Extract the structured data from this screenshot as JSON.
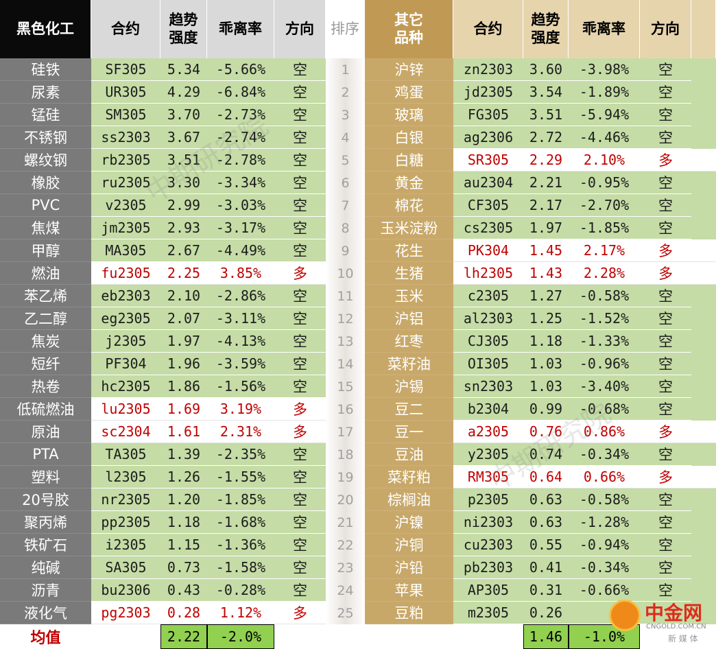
{
  "headers": {
    "left_category": "黑色化工",
    "contract": "合约",
    "strength": "趋势\n强度",
    "deviation": "乖离率",
    "direction": "方向",
    "rank": "排序",
    "right_category": "其它\n品种"
  },
  "rows": [
    {
      "rank": "1",
      "left": {
        "name": "硅铁",
        "contract": "SF305",
        "strength": "5.34",
        "deviation": "-5.66%",
        "direction": "空"
      },
      "right": {
        "name": "沪锌",
        "contract": "zn2303",
        "strength": "3.60",
        "deviation": "-3.98%",
        "direction": "空"
      }
    },
    {
      "rank": "2",
      "left": {
        "name": "尿素",
        "contract": "UR305",
        "strength": "4.29",
        "deviation": "-6.84%",
        "direction": "空"
      },
      "right": {
        "name": "鸡蛋",
        "contract": "jd2305",
        "strength": "3.54",
        "deviation": "-1.89%",
        "direction": "空"
      }
    },
    {
      "rank": "3",
      "left": {
        "name": "锰硅",
        "contract": "SM305",
        "strength": "3.70",
        "deviation": "-2.73%",
        "direction": "空"
      },
      "right": {
        "name": "玻璃",
        "contract": "FG305",
        "strength": "3.51",
        "deviation": "-5.94%",
        "direction": "空"
      }
    },
    {
      "rank": "4",
      "left": {
        "name": "不锈钢",
        "contract": "ss2303",
        "strength": "3.67",
        "deviation": "-2.74%",
        "direction": "空"
      },
      "right": {
        "name": "白银",
        "contract": "ag2306",
        "strength": "2.72",
        "deviation": "-4.46%",
        "direction": "空"
      }
    },
    {
      "rank": "5",
      "left": {
        "name": "螺纹钢",
        "contract": "rb2305",
        "strength": "3.51",
        "deviation": "-2.78%",
        "direction": "空"
      },
      "right": {
        "name": "白糖",
        "contract": "SR305",
        "strength": "2.29",
        "deviation": "2.10%",
        "direction": "多"
      }
    },
    {
      "rank": "6",
      "left": {
        "name": "橡胶",
        "contract": "ru2305",
        "strength": "3.30",
        "deviation": "-3.34%",
        "direction": "空"
      },
      "right": {
        "name": "黄金",
        "contract": "au2304",
        "strength": "2.21",
        "deviation": "-0.95%",
        "direction": "空"
      }
    },
    {
      "rank": "7",
      "left": {
        "name": "PVC",
        "contract": "v2305",
        "strength": "2.99",
        "deviation": "-3.03%",
        "direction": "空"
      },
      "right": {
        "name": "棉花",
        "contract": "CF305",
        "strength": "2.17",
        "deviation": "-2.70%",
        "direction": "空"
      }
    },
    {
      "rank": "8",
      "left": {
        "name": "焦煤",
        "contract": "jm2305",
        "strength": "2.93",
        "deviation": "-3.17%",
        "direction": "空"
      },
      "right": {
        "name": "玉米淀粉",
        "contract": "cs2305",
        "strength": "1.97",
        "deviation": "-1.85%",
        "direction": "空"
      }
    },
    {
      "rank": "9",
      "left": {
        "name": "甲醇",
        "contract": "MA305",
        "strength": "2.67",
        "deviation": "-4.49%",
        "direction": "空"
      },
      "right": {
        "name": "花生",
        "contract": "PK304",
        "strength": "1.45",
        "deviation": "2.17%",
        "direction": "多"
      }
    },
    {
      "rank": "10",
      "left": {
        "name": "燃油",
        "contract": "fu2305",
        "strength": "2.25",
        "deviation": "3.85%",
        "direction": "多"
      },
      "right": {
        "name": "生猪",
        "contract": "lh2305",
        "strength": "1.43",
        "deviation": "2.28%",
        "direction": "多"
      }
    },
    {
      "rank": "11",
      "left": {
        "name": "苯乙烯",
        "contract": "eb2303",
        "strength": "2.10",
        "deviation": "-2.86%",
        "direction": "空"
      },
      "right": {
        "name": "玉米",
        "contract": "c2305",
        "strength": "1.27",
        "deviation": "-0.58%",
        "direction": "空"
      }
    },
    {
      "rank": "12",
      "left": {
        "name": "乙二醇",
        "contract": "eg2305",
        "strength": "2.07",
        "deviation": "-3.11%",
        "direction": "空"
      },
      "right": {
        "name": "沪铝",
        "contract": "al2303",
        "strength": "1.25",
        "deviation": "-1.52%",
        "direction": "空"
      }
    },
    {
      "rank": "13",
      "left": {
        "name": "焦炭",
        "contract": "j2305",
        "strength": "1.97",
        "deviation": "-4.13%",
        "direction": "空"
      },
      "right": {
        "name": "红枣",
        "contract": "CJ305",
        "strength": "1.18",
        "deviation": "-1.33%",
        "direction": "空"
      }
    },
    {
      "rank": "14",
      "left": {
        "name": "短纤",
        "contract": "PF304",
        "strength": "1.96",
        "deviation": "-3.59%",
        "direction": "空"
      },
      "right": {
        "name": "菜籽油",
        "contract": "OI305",
        "strength": "1.03",
        "deviation": "-0.96%",
        "direction": "空"
      }
    },
    {
      "rank": "15",
      "left": {
        "name": "热卷",
        "contract": "hc2305",
        "strength": "1.86",
        "deviation": "-1.56%",
        "direction": "空"
      },
      "right": {
        "name": "沪锡",
        "contract": "sn2303",
        "strength": "1.03",
        "deviation": "-3.40%",
        "direction": "空"
      }
    },
    {
      "rank": "16",
      "left": {
        "name": "低硫燃油",
        "contract": "lu2305",
        "strength": "1.69",
        "deviation": "3.19%",
        "direction": "多"
      },
      "right": {
        "name": "豆二",
        "contract": "b2304",
        "strength": "0.99",
        "deviation": "-0.68%",
        "direction": "空"
      }
    },
    {
      "rank": "17",
      "left": {
        "name": "原油",
        "contract": "sc2304",
        "strength": "1.61",
        "deviation": "2.31%",
        "direction": "多"
      },
      "right": {
        "name": "豆一",
        "contract": "a2305",
        "strength": "0.76",
        "deviation": "0.86%",
        "direction": "多"
      }
    },
    {
      "rank": "18",
      "left": {
        "name": "PTA",
        "contract": "TA305",
        "strength": "1.39",
        "deviation": "-2.35%",
        "direction": "空"
      },
      "right": {
        "name": "豆油",
        "contract": "y2305",
        "strength": "0.74",
        "deviation": "-0.34%",
        "direction": "空"
      }
    },
    {
      "rank": "19",
      "left": {
        "name": "塑料",
        "contract": "l2305",
        "strength": "1.26",
        "deviation": "-1.55%",
        "direction": "空"
      },
      "right": {
        "name": "菜籽粕",
        "contract": "RM305",
        "strength": "0.64",
        "deviation": "0.66%",
        "direction": "多"
      }
    },
    {
      "rank": "20",
      "left": {
        "name": "20号胶",
        "contract": "nr2305",
        "strength": "1.20",
        "deviation": "-1.85%",
        "direction": "空"
      },
      "right": {
        "name": "棕榈油",
        "contract": "p2305",
        "strength": "0.63",
        "deviation": "-0.58%",
        "direction": "空"
      }
    },
    {
      "rank": "21",
      "left": {
        "name": "聚丙烯",
        "contract": "pp2305",
        "strength": "1.18",
        "deviation": "-1.68%",
        "direction": "空"
      },
      "right": {
        "name": "沪镍",
        "contract": "ni2303",
        "strength": "0.63",
        "deviation": "-1.28%",
        "direction": "空"
      }
    },
    {
      "rank": "22",
      "left": {
        "name": "铁矿石",
        "contract": "i2305",
        "strength": "1.15",
        "deviation": "-1.36%",
        "direction": "空"
      },
      "right": {
        "name": "沪铜",
        "contract": "cu2303",
        "strength": "0.55",
        "deviation": "-0.94%",
        "direction": "空"
      }
    },
    {
      "rank": "23",
      "left": {
        "name": "纯碱",
        "contract": "SA305",
        "strength": "0.73",
        "deviation": "-1.58%",
        "direction": "空"
      },
      "right": {
        "name": "沪铅",
        "contract": "pb2303",
        "strength": "0.41",
        "deviation": "-0.34%",
        "direction": "空"
      }
    },
    {
      "rank": "24",
      "left": {
        "name": "沥青",
        "contract": "bu2306",
        "strength": "0.43",
        "deviation": "-0.28%",
        "direction": "空"
      },
      "right": {
        "name": "苹果",
        "contract": "AP305",
        "strength": "0.31",
        "deviation": "-0.66%",
        "direction": "空"
      }
    },
    {
      "rank": "25",
      "left": {
        "name": "液化气",
        "contract": "pg2303",
        "strength": "0.28",
        "deviation": "1.12%",
        "direction": "多"
      },
      "right": {
        "name": "豆粕",
        "contract": "m2305",
        "strength": "0.26",
        "deviation": "",
        "direction": ""
      }
    }
  ],
  "footer": {
    "label": "均值",
    "left_strength": "2.22",
    "left_deviation": "-2.0%",
    "right_strength": "1.46",
    "right_deviation": "-1.0%"
  },
  "watermark": "中期研究院",
  "logo": {
    "text": "中金网",
    "url": "CNGOLD.COM.CN",
    "sub": "新 媒 体"
  },
  "colors": {
    "short_bg": "#c5dca6",
    "long_text": "#c00000",
    "left_name_bg": "#7a7a7a",
    "right_name_bg": "#c8a869"
  }
}
